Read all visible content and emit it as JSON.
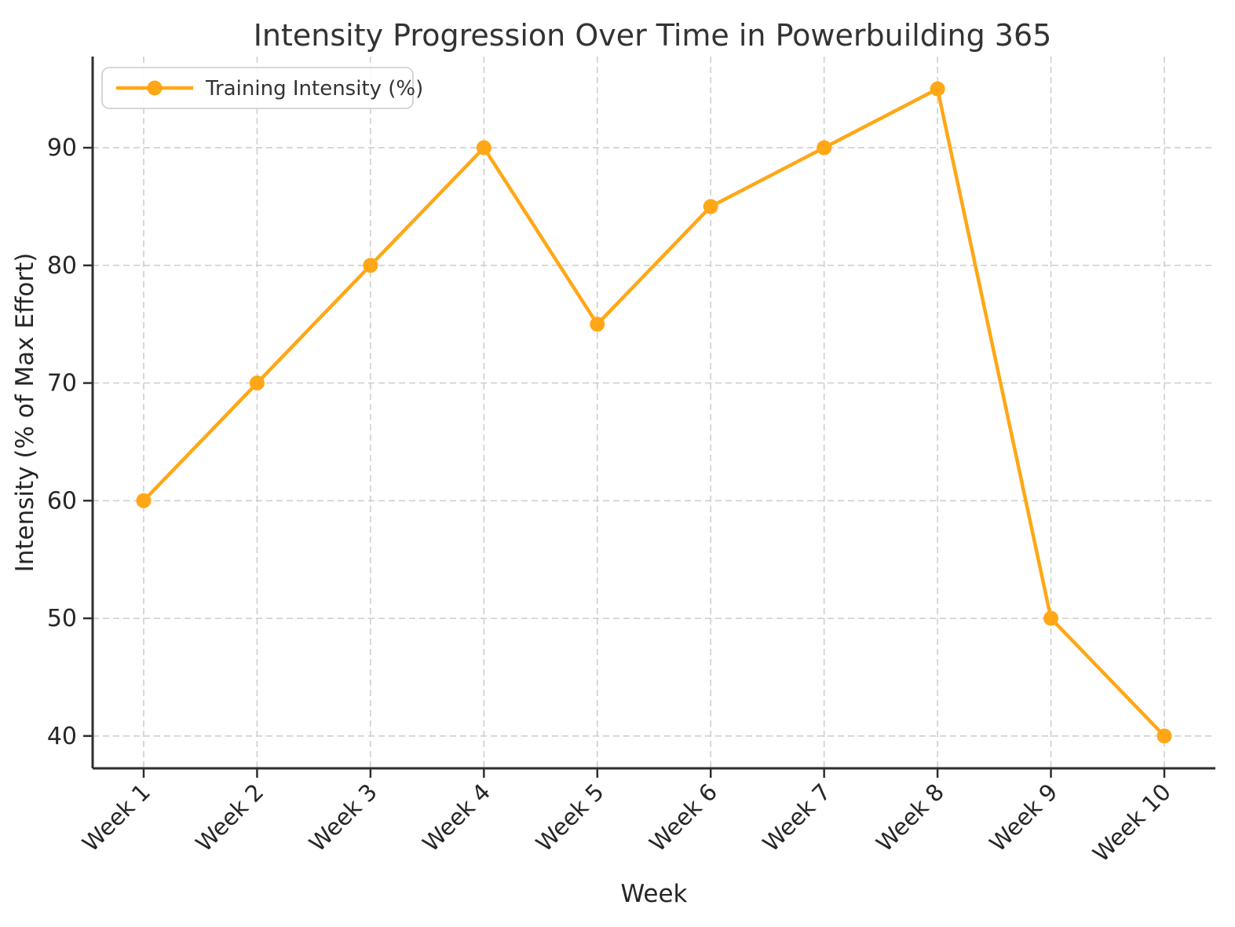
{
  "chart_data": {
    "type": "line",
    "title": "Intensity Progression Over Time in Powerbuilding 365",
    "xlabel": "Week",
    "ylabel": "Intensity (% of Max Effort)",
    "categories": [
      "Week 1",
      "Week 2",
      "Week 3",
      "Week 4",
      "Week 5",
      "Week 6",
      "Week 7",
      "Week 8",
      "Week 9",
      "Week 10"
    ],
    "series": [
      {
        "name": "Training Intensity (%)",
        "values": [
          60,
          70,
          80,
          90,
          75,
          85,
          90,
          95,
          50,
          40
        ],
        "color": "#FFA716",
        "marker": "circle"
      }
    ],
    "yticks": [
      40,
      50,
      60,
      70,
      80,
      90
    ],
    "ylim": [
      37.25,
      97.75
    ],
    "grid": "dashed-both-directions",
    "legend_position": "upper-left",
    "legend_entries": [
      "Training Intensity (%)"
    ]
  },
  "colors": {
    "line": "#FFA716",
    "marker": "#FFA716",
    "grid": "#cccccc",
    "axis": "#2e2e2e",
    "title_text": "#333333",
    "tick_text": "#262626",
    "legend_border": "#cccccc",
    "legend_background": "#ffffff"
  }
}
